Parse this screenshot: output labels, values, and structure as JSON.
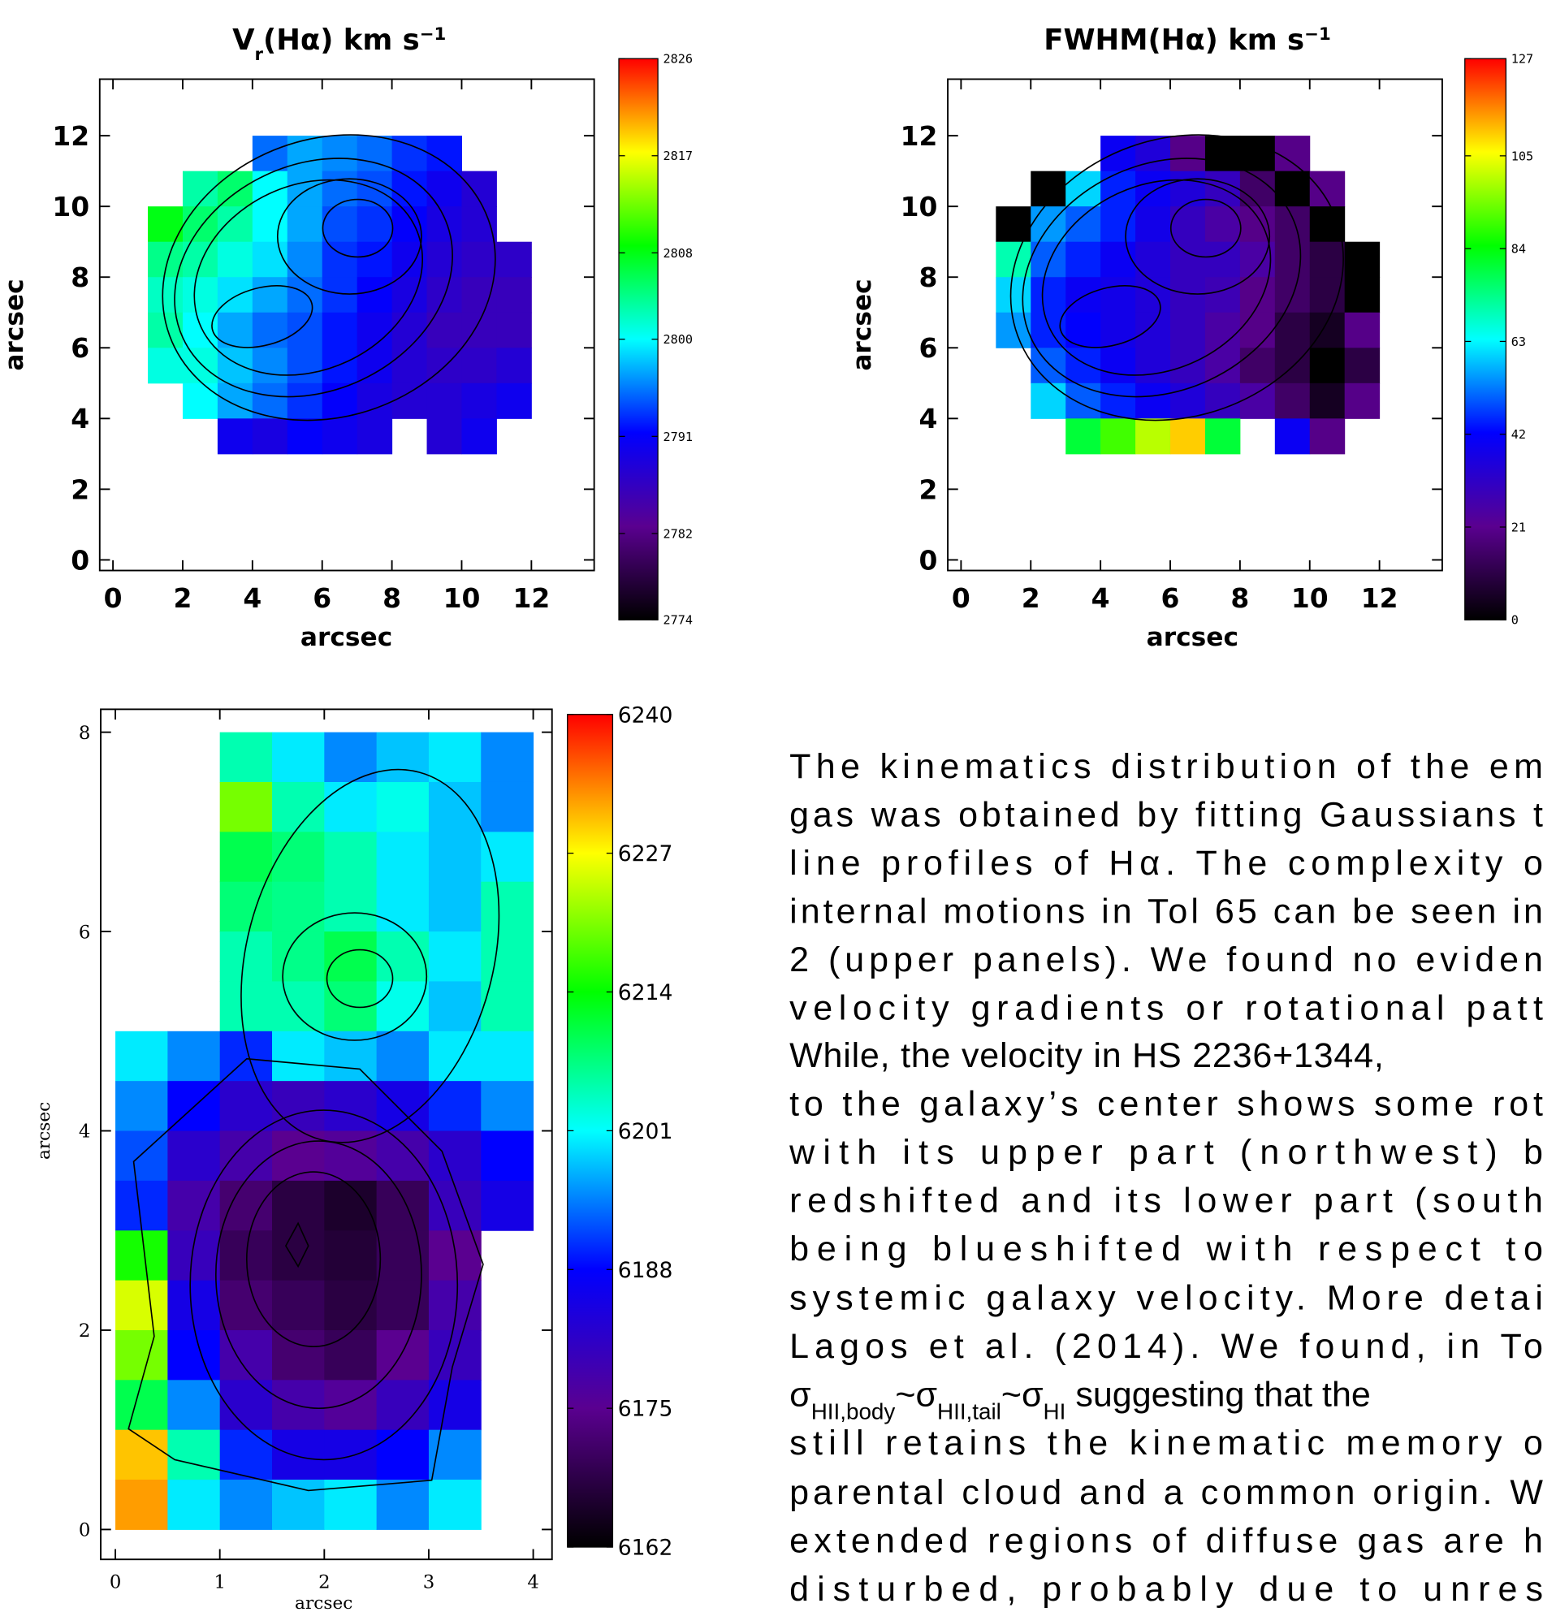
{
  "chart_data": [
    {
      "type": "heatmap",
      "title": [
        {
          "text": "V"
        },
        {
          "text": "r",
          "sub": true
        },
        {
          "text": "(Hα) km s"
        },
        {
          "text": "−1",
          "sup": true
        }
      ],
      "x_label": "arcsec",
      "y_label": "arcsec",
      "xlim": [
        -0.38,
        13.8
      ],
      "ylim": [
        -0.3,
        13.6
      ],
      "xticks": [
        0,
        2,
        4,
        6,
        8,
        10,
        12
      ],
      "yticks": [
        0,
        2,
        4,
        6,
        8,
        10,
        12
      ],
      "x": [
        1.5,
        2.5,
        3.5,
        4.5,
        5.5,
        6.5,
        7.5,
        8.5,
        9.5,
        10.5,
        11.5
      ],
      "y": [
        11.5,
        10.5,
        9.5,
        8.5,
        7.5,
        6.5,
        5.5,
        4.5,
        3.5
      ],
      "z": [
        [
          null,
          null,
          null,
          2795,
          2797,
          2796,
          2795,
          2793,
          2792,
          null,
          null
        ],
        [
          null,
          2803,
          2805,
          2800,
          2797,
          2795,
          2794,
          2792,
          2790,
          2788,
          null
        ],
        [
          2808,
          2805,
          2803,
          2800,
          2797,
          2794,
          2793,
          2791,
          2789,
          2788,
          null
        ],
        [
          2804,
          2803,
          2801,
          2799,
          2796,
          2793,
          2792,
          2790,
          2788,
          2787,
          2787
        ],
        [
          2802,
          2801,
          2799,
          2797,
          2795,
          2793,
          2791,
          2789,
          2787,
          2786,
          2786
        ],
        [
          2803,
          2800,
          2797,
          2795,
          2794,
          2792,
          2790,
          2788,
          2786,
          2786,
          2786
        ],
        [
          2801,
          2801,
          2798,
          2796,
          2794,
          2792,
          2790,
          2788,
          2787,
          2787,
          2788
        ],
        [
          null,
          2800,
          2797,
          2795,
          2793,
          2791,
          2789,
          2788,
          2788,
          2789,
          2790
        ],
        [
          null,
          null,
          2790,
          2789,
          2791,
          2790,
          2789,
          null,
          2788,
          2790,
          null
        ]
      ],
      "clim": [
        2774,
        2826
      ],
      "cticks": [
        2826,
        2817,
        2808,
        2800,
        2791,
        2782,
        2774
      ],
      "colormap": [
        "#000000",
        "#5a0090",
        "#0000ff",
        "#00ffff",
        "#00ff00",
        "#ffff00",
        "#ff0000"
      ]
    },
    {
      "type": "heatmap",
      "title": [
        {
          "text": "FWHM(Hα) km s"
        },
        {
          "text": "−1",
          "sup": true
        }
      ],
      "x_label": "arcsec",
      "y_label": "arcsec",
      "xlim": [
        -0.38,
        13.8
      ],
      "ylim": [
        -0.3,
        13.6
      ],
      "xticks": [
        0,
        2,
        4,
        6,
        8,
        10,
        12
      ],
      "yticks": [
        0,
        2,
        4,
        6,
        8,
        10,
        12
      ],
      "x": [
        1.5,
        2.5,
        3.5,
        4.5,
        5.5,
        6.5,
        7.5,
        8.5,
        9.5,
        10.5,
        11.5
      ],
      "y": [
        11.5,
        10.5,
        9.5,
        8.5,
        7.5,
        6.5,
        5.5,
        4.5,
        3.5
      ],
      "z": [
        [
          null,
          null,
          null,
          40,
          35,
          20,
          0,
          0,
          20,
          null,
          null
        ],
        [
          null,
          0,
          60,
          45,
          40,
          35,
          30,
          15,
          0,
          20,
          null
        ],
        [
          0,
          55,
          50,
          45,
          38,
          30,
          25,
          20,
          15,
          0,
          null
        ],
        [
          70,
          50,
          45,
          40,
          35,
          30,
          30,
          25,
          15,
          10,
          0
        ],
        [
          60,
          45,
          40,
          38,
          35,
          30,
          28,
          20,
          15,
          10,
          0
        ],
        [
          55,
          45,
          42,
          38,
          35,
          30,
          25,
          20,
          10,
          5,
          20
        ],
        [
          null,
          50,
          45,
          40,
          35,
          30,
          25,
          15,
          10,
          0,
          10
        ],
        [
          null,
          60,
          50,
          45,
          40,
          35,
          30,
          25,
          15,
          5,
          20
        ],
        [
          null,
          null,
          80,
          90,
          100,
          110,
          80,
          null,
          40,
          20,
          null
        ]
      ],
      "clim": [
        0,
        127
      ],
      "cticks": [
        127,
        105,
        84,
        63,
        42,
        21,
        0
      ],
      "colormap": [
        "#000000",
        "#5a0090",
        "#0000ff",
        "#00ffff",
        "#00ff00",
        "#ffff00",
        "#ff0000"
      ]
    },
    {
      "type": "heatmap",
      "x_label": "arcsec",
      "y_label": "arcsec",
      "xlim": [
        -0.14,
        4.18
      ],
      "ylim": [
        -0.3,
        8.23
      ],
      "xticks": [
        0,
        1,
        2,
        3,
        4
      ],
      "yticks": [
        0,
        2,
        4,
        6,
        8
      ],
      "x": [
        0.25,
        0.75,
        1.25,
        1.75,
        2.25,
        2.75,
        3.25,
        3.75
      ],
      "y": [
        7.75,
        7.25,
        6.75,
        6.25,
        5.75,
        5.25,
        4.75,
        4.25,
        3.75,
        3.25,
        2.75,
        2.25,
        1.75,
        1.25,
        0.75,
        0.25
      ],
      "z": [
        [
          null,
          null,
          6205,
          6200,
          6195,
          6198,
          6200,
          6195
        ],
        [
          null,
          null,
          6220,
          6205,
          6200,
          6202,
          6198,
          6195
        ],
        [
          null,
          null,
          6210,
          6208,
          6205,
          6200,
          6198,
          6200
        ],
        [
          null,
          null,
          6208,
          6207,
          6205,
          6200,
          6198,
          6205
        ],
        [
          null,
          null,
          6205,
          6207,
          6210,
          6205,
          6200,
          6205
        ],
        [
          null,
          null,
          6205,
          6205,
          6208,
          6202,
          6198,
          6205
        ],
        [
          6200,
          6195,
          6190,
          6200,
          6198,
          6195,
          6200,
          6200
        ],
        [
          6195,
          6188,
          6182,
          6180,
          6182,
          6185,
          6190,
          6195
        ],
        [
          6192,
          6182,
          6178,
          6175,
          6176,
          6178,
          6182,
          6188
        ],
        [
          6190,
          6178,
          6172,
          6168,
          6166,
          6170,
          6180,
          6185
        ],
        [
          6215,
          6180,
          6170,
          6168,
          6167,
          6170,
          6175,
          null
        ],
        [
          6225,
          6185,
          6172,
          6170,
          6168,
          6170,
          6178,
          null
        ],
        [
          6220,
          6188,
          6178,
          6172,
          6170,
          6175,
          6180,
          null
        ],
        [
          6210,
          6195,
          6182,
          6178,
          6176,
          6180,
          6185,
          null
        ],
        [
          6230,
          6205,
          6190,
          6185,
          6185,
          6188,
          6195,
          null
        ],
        [
          6232,
          6200,
          6195,
          6198,
          6200,
          6195,
          6200,
          null
        ]
      ],
      "clim": [
        6162,
        6240
      ],
      "cticks": [
        6240,
        6227,
        6214,
        6201,
        6188,
        6175,
        6162
      ],
      "colormap": [
        "#000000",
        "#5a0090",
        "#0000ff",
        "#00ffff",
        "#00ff00",
        "#ffff00",
        "#ff0000"
      ]
    }
  ],
  "text": {
    "lines": [
      "The kinematics distribution of the em",
      "gas was obtained by fitting Gaussians t",
      "line profiles of Hα. The complexity o",
      "internal motions in Tol 65 can be seen in",
      "2 (upper panels). We found no eviden",
      "velocity gradients or rotational patt",
      "While, the velocity in HS 2236+1344,",
      "to the galaxy’s center shows some rot",
      "with its upper part (northwest) b",
      "redshifted and its lower part (south",
      "being blueshifted with respect to",
      "systemic galaxy velocity. More detai",
      "Lagos et al. (2014). We found, in To",
      [
        {
          "text": "σ"
        },
        {
          "text": "HII,body",
          "sub": true
        },
        {
          "text": "~σ"
        },
        {
          "text": "HII,tail",
          "sub": true
        },
        {
          "text": "~σ"
        },
        {
          "text": "HI",
          "sub": true
        },
        {
          "text": " suggesting that the"
        }
      ],
      "still retains the kinematic memory o",
      "parental cloud and a common origin. W",
      "extended regions of diffuse gas are h",
      "disturbed, probably due to unres"
    ]
  }
}
